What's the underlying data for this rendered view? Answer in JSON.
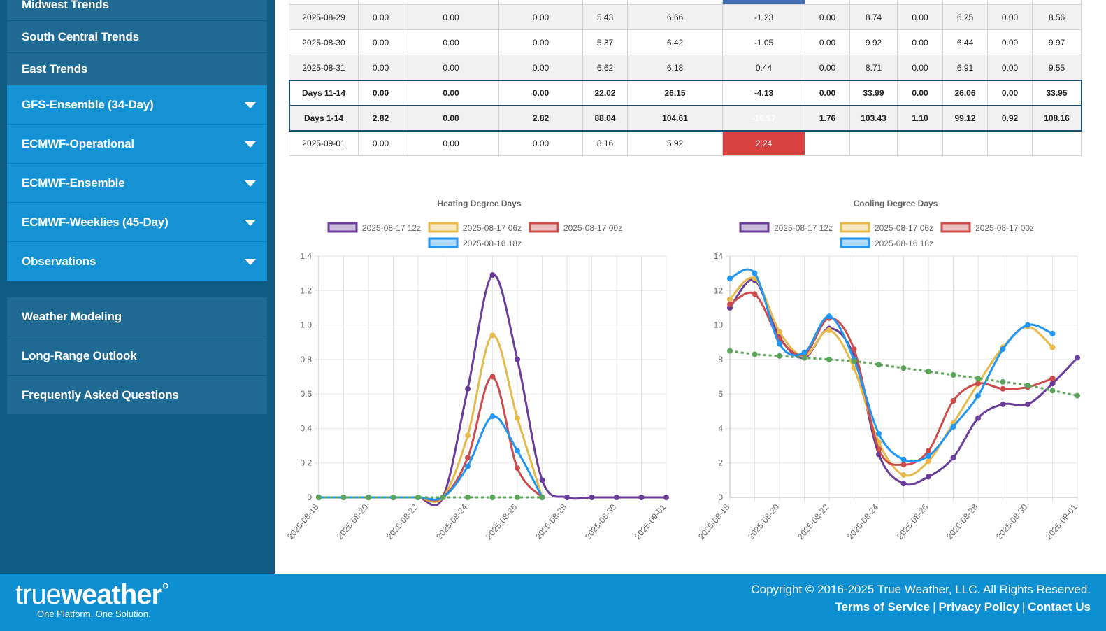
{
  "sidebar": {
    "trend_items": [
      "Midwest Trends",
      "South Central Trends",
      "East Trends"
    ],
    "dropdowns": [
      "GFS-Ensemble (34-Day)",
      "ECMWF-Operational",
      "ECMWF-Ensemble",
      "ECMWF-Weeklies (45-Day)",
      "Observations"
    ],
    "bottom_items": [
      "Weather Modeling",
      "Long-Range Outlook",
      "Frequently Asked Questions"
    ]
  },
  "table": {
    "rows": [
      {
        "style": "odd",
        "cells": [
          "2025-08-29",
          "0.00",
          "0.00",
          "0.00",
          "5.43",
          "6.66",
          "-1.23",
          "0.00",
          "8.74",
          "0.00",
          "6.25",
          "0.00",
          "8.56"
        ],
        "hl": ""
      },
      {
        "style": "even",
        "cells": [
          "2025-08-30",
          "0.00",
          "0.00",
          "0.00",
          "5.37",
          "6.42",
          "-1.05",
          "0.00",
          "9.92",
          "0.00",
          "6.44",
          "0.00",
          "9.97"
        ],
        "hl": ""
      },
      {
        "style": "odd",
        "cells": [
          "2025-08-31",
          "0.00",
          "0.00",
          "0.00",
          "6.62",
          "6.18",
          "0.44",
          "0.00",
          "8.71",
          "0.00",
          "6.91",
          "0.00",
          "9.55"
        ],
        "hl": ""
      },
      {
        "style": "sum",
        "cells": [
          "Days 11-14",
          "0.00",
          "0.00",
          "0.00",
          "22.02",
          "26.15",
          "-4.13",
          "0.00",
          "33.99",
          "0.00",
          "26.06",
          "0.00",
          "33.95"
        ],
        "hl": ""
      },
      {
        "style": "sum odd",
        "cells": [
          "Days 1-14",
          "2.82",
          "0.00",
          "2.82",
          "88.04",
          "104.61",
          "-16.57",
          "1.76",
          "103.43",
          "1.10",
          "99.12",
          "0.92",
          "108.16"
        ],
        "hl": "neg"
      },
      {
        "style": "even",
        "cells": [
          "2025-09-01",
          "0.00",
          "0.00",
          "0.00",
          "8.16",
          "5.92",
          "2.24",
          "",
          "",
          "",
          "",
          "",
          ""
        ],
        "hl": "pos"
      }
    ]
  },
  "chart_data": [
    {
      "type": "line",
      "title": "Heating Degree Days",
      "x": [
        "2025-08-18",
        "2025-08-19",
        "2025-08-20",
        "2025-08-21",
        "2025-08-22",
        "2025-08-23",
        "2025-08-24",
        "2025-08-25",
        "2025-08-26",
        "2025-08-27",
        "2025-08-28",
        "2025-08-29",
        "2025-08-30",
        "2025-08-31",
        "2025-09-01"
      ],
      "xticks": [
        "2025-08-18",
        "2025-08-20",
        "2025-08-22",
        "2025-08-24",
        "2025-08-26",
        "2025-08-28",
        "2025-08-30",
        "2025-09-01"
      ],
      "ylim": [
        0,
        1.4
      ],
      "yticks": [
        "0",
        "0.2",
        "0.4",
        "0.6",
        "0.8",
        "1.0",
        "1.2",
        "1.4"
      ],
      "legend": [
        "2025-08-17 12z",
        "2025-08-17 06z",
        "2025-08-17 00z",
        "2025-08-16 18z"
      ],
      "series": [
        {
          "name": "2025-08-17 12z",
          "color": "#6a3d9a",
          "values": [
            0,
            0,
            0,
            0,
            0,
            0,
            0.63,
            1.29,
            0.8,
            0.1,
            0,
            0,
            0,
            0,
            0
          ]
        },
        {
          "name": "2025-08-17 06z",
          "color": "#e6b94a",
          "values": [
            0,
            0,
            0,
            0,
            0,
            0,
            0.36,
            0.94,
            0.46,
            0,
            null,
            null,
            null,
            null,
            null
          ]
        },
        {
          "name": "2025-08-17 00z",
          "color": "#cc4c4c",
          "values": [
            0,
            0,
            0,
            0,
            0,
            0,
            0.23,
            0.7,
            0.17,
            0,
            null,
            null,
            null,
            null,
            null
          ]
        },
        {
          "name": "2025-08-16 18z",
          "color": "#2196f3",
          "values": [
            0,
            0,
            0,
            0,
            0,
            0,
            0.18,
            0.47,
            0.27,
            0,
            null,
            null,
            null,
            null,
            null
          ]
        },
        {
          "name": "",
          "color": "#5aa55a",
          "dashed": true,
          "values": [
            0,
            0,
            0,
            0,
            0,
            0,
            0,
            0,
            0,
            0,
            null,
            null,
            null,
            null,
            null
          ]
        }
      ]
    },
    {
      "type": "line",
      "title": "Cooling Degree Days",
      "x": [
        "2025-08-18",
        "2025-08-19",
        "2025-08-20",
        "2025-08-21",
        "2025-08-22",
        "2025-08-23",
        "2025-08-24",
        "2025-08-25",
        "2025-08-26",
        "2025-08-27",
        "2025-08-28",
        "2025-08-29",
        "2025-08-30",
        "2025-08-31",
        "2025-09-01"
      ],
      "xticks": [
        "2025-08-18",
        "2025-08-20",
        "2025-08-22",
        "2025-08-24",
        "2025-08-26",
        "2025-08-28",
        "2025-08-30",
        "2025-09-01"
      ],
      "ylim": [
        0,
        14
      ],
      "yticks": [
        "0",
        "2",
        "4",
        "6",
        "8",
        "10",
        "12",
        "14"
      ],
      "legend": [
        "2025-08-17 12z",
        "2025-08-17 06z",
        "2025-08-17 00z",
        "2025-08-16 18z"
      ],
      "series": [
        {
          "name": "2025-08-17 12z",
          "color": "#6a3d9a",
          "values": [
            11.0,
            12.6,
            9.3,
            8.1,
            9.8,
            8.2,
            2.5,
            0.8,
            1.2,
            2.3,
            4.6,
            5.4,
            5.4,
            6.6,
            8.1
          ]
        },
        {
          "name": "2025-08-17 06z",
          "color": "#e6b94a",
          "values": [
            11.5,
            12.7,
            9.6,
            8.2,
            9.7,
            7.5,
            3.2,
            1.3,
            2.1,
            4.3,
            6.6,
            8.7,
            9.9,
            8.7,
            null
          ]
        },
        {
          "name": "2025-08-17 00z",
          "color": "#cc4c4c",
          "values": [
            11.2,
            11.8,
            9.2,
            8.3,
            10.4,
            8.6,
            2.8,
            1.9,
            2.7,
            5.6,
            6.6,
            6.3,
            6.4,
            6.9,
            null
          ]
        },
        {
          "name": "2025-08-16 18z",
          "color": "#2196f3",
          "values": [
            12.7,
            13.0,
            8.9,
            8.4,
            10.5,
            8.0,
            3.7,
            2.2,
            2.4,
            4.1,
            5.9,
            8.6,
            10.0,
            9.5,
            null
          ]
        },
        {
          "name": "",
          "color": "#5aa55a",
          "dashed": true,
          "values": [
            8.5,
            8.3,
            8.2,
            8.1,
            8.0,
            7.9,
            7.7,
            7.5,
            7.3,
            7.1,
            6.9,
            6.7,
            6.5,
            6.2,
            5.9
          ]
        }
      ]
    }
  ],
  "footer": {
    "logo_true": "true",
    "logo_weather": "weather",
    "logo_mark": "°",
    "tagline": "One Platform. One Solution.",
    "copyright": "Copyright © 2016-2025 True Weather, LLC. All Rights Reserved.",
    "links": [
      "Terms of Service",
      "Privacy Policy",
      "Contact Us"
    ],
    "separator": "|"
  }
}
